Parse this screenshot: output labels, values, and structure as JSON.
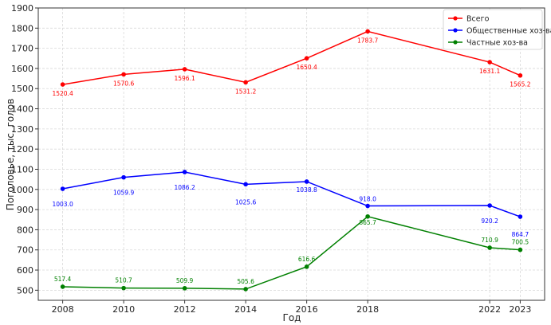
{
  "chart_data": {
    "type": "line",
    "xlabel": "Год",
    "ylabel": "Поголовье, тыс. голов",
    "x": [
      2008,
      2010,
      2012,
      2014,
      2016,
      2018,
      2022,
      2023
    ],
    "x_ticks": [
      "2008",
      "2010",
      "2012",
      "2014",
      "2016",
      "2018",
      "2022",
      "2023"
    ],
    "ylim": [
      450,
      1900
    ],
    "y_ticks": [
      "500",
      "600",
      "700",
      "800",
      "900",
      "1000",
      "1100",
      "1200",
      "1300",
      "1400",
      "1500",
      "1600",
      "1700",
      "1800",
      "1900"
    ],
    "grid": true,
    "legend_position": "top-right",
    "series": [
      {
        "name": "Всего",
        "color": "#ff0000",
        "values": [
          1520.4,
          1570.6,
          1596.1,
          1531.2,
          1650.4,
          1783.7,
          1631.1,
          1565.2
        ],
        "labels": [
          "1520.4",
          "1570.6",
          "1596.1",
          "1531.2",
          "1650.4",
          "1783.7",
          "1631.1",
          "1565.2"
        ]
      },
      {
        "name": "Общественные хоз-ва",
        "color": "#0000ff",
        "values": [
          1003.0,
          1059.9,
          1086.2,
          1025.6,
          1038.8,
          918.0,
          920.2,
          864.7
        ],
        "labels": [
          "1003.0",
          "1059.9",
          "1086.2",
          "1025.6",
          "1038.8",
          "918.0",
          "920.2",
          "864.7"
        ]
      },
      {
        "name": "Частные хоз-ва",
        "color": "#008000",
        "values": [
          517.4,
          510.7,
          509.9,
          505.6,
          616.6,
          865.7,
          710.9,
          700.5
        ],
        "labels": [
          "517.4",
          "510.7",
          "509.9",
          "505.6",
          "616.6",
          "865.7",
          "710.9",
          "700.5"
        ]
      }
    ]
  }
}
